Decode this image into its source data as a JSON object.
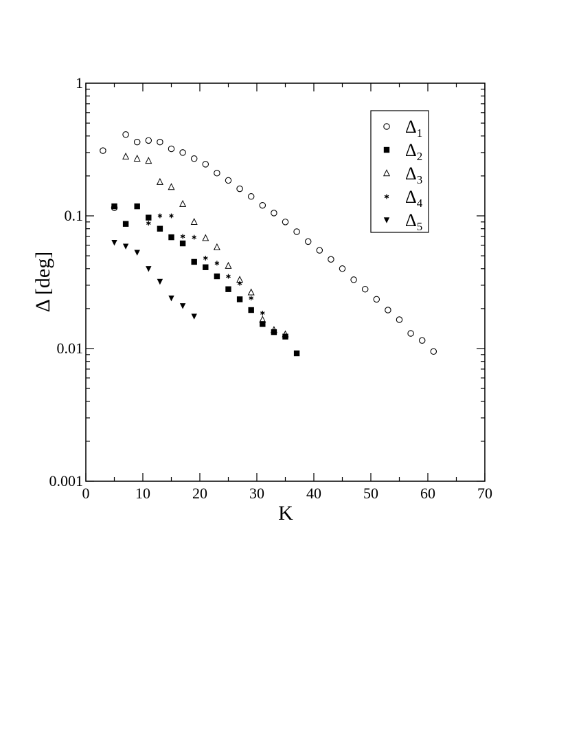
{
  "chart_data": {
    "type": "scatter",
    "xlabel": "K",
    "ylabel": "Δ [deg]",
    "xlim": [
      0,
      70
    ],
    "ylim": [
      0.001,
      1
    ],
    "yscale": "log",
    "grid": false,
    "legend_position": "top-right",
    "x_ticks": [
      "0",
      "10",
      "20",
      "30",
      "40",
      "50",
      "60",
      "70"
    ],
    "y_ticks": [
      "0.001",
      "0.01",
      "0.1",
      "1"
    ],
    "series": [
      {
        "name": "Δ",
        "sub": "1",
        "marker": "open-circle",
        "x": [
          3,
          5,
          7,
          9,
          11,
          13,
          15,
          17,
          19,
          21,
          23,
          25,
          27,
          29,
          31,
          33,
          35,
          37,
          39,
          41,
          43,
          45,
          47,
          49,
          51,
          53,
          55,
          57,
          59,
          61
        ],
        "y": [
          0.31,
          0.115,
          0.41,
          0.36,
          0.37,
          0.36,
          0.32,
          0.3,
          0.27,
          0.245,
          0.21,
          0.185,
          0.16,
          0.14,
          0.12,
          0.105,
          0.09,
          0.076,
          0.064,
          0.055,
          0.047,
          0.04,
          0.033,
          0.028,
          0.0235,
          0.0195,
          0.0165,
          0.013,
          0.0115,
          0.0095
        ]
      },
      {
        "name": "Δ",
        "sub": "2",
        "marker": "filled-square",
        "x": [
          5,
          7,
          9,
          11,
          13,
          15,
          17,
          19,
          21,
          23,
          25,
          27,
          29,
          31,
          33,
          35,
          37
        ],
        "y": [
          0.118,
          0.087,
          0.118,
          0.097,
          0.08,
          0.069,
          0.062,
          0.045,
          0.041,
          0.035,
          0.028,
          0.0235,
          0.0195,
          0.0153,
          0.0133,
          0.0123,
          0.0092
        ]
      },
      {
        "name": "Δ",
        "sub": "3",
        "marker": "open-triangle",
        "x": [
          7,
          9,
          11,
          13,
          15,
          17,
          19,
          21,
          23,
          25,
          27,
          29,
          31,
          33,
          35
        ],
        "y": [
          0.28,
          0.27,
          0.26,
          0.18,
          0.165,
          0.123,
          0.09,
          0.068,
          0.058,
          0.042,
          0.033,
          0.0265,
          0.0165,
          0.0138,
          0.0128
        ]
      },
      {
        "name": "Δ",
        "sub": "4",
        "marker": "asterisk",
        "x": [
          11,
          13,
          15,
          17,
          19,
          21,
          23,
          25,
          27,
          29,
          31,
          33,
          35
        ],
        "y": [
          0.088,
          0.1,
          0.1,
          0.07,
          0.069,
          0.048,
          0.044,
          0.035,
          0.031,
          0.024,
          0.0185,
          0.0135,
          0.0123
        ]
      },
      {
        "name": "Δ",
        "sub": "5",
        "marker": "filled-down-triangle",
        "x": [
          5,
          7,
          9,
          11,
          13,
          15,
          17,
          19
        ],
        "y": [
          0.063,
          0.059,
          0.053,
          0.04,
          0.032,
          0.024,
          0.021,
          0.0175
        ]
      }
    ]
  }
}
